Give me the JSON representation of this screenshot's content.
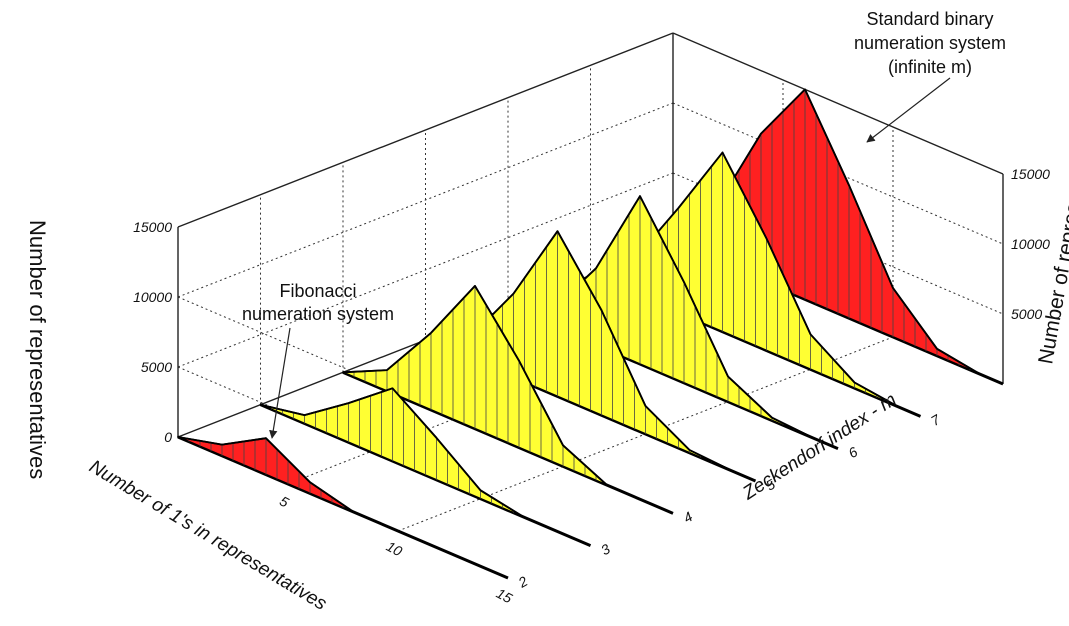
{
  "chart_data": {
    "type": "area",
    "title": "",
    "x_axis": {
      "label": "Number of 1's in representatives",
      "ticks": [
        "0",
        "5",
        "10",
        "15"
      ],
      "range": [
        0,
        15
      ]
    },
    "depth_axis": {
      "label": "Zeckendorf index - m",
      "ticks": [
        "2",
        "3",
        "4",
        "5",
        "6",
        "7"
      ]
    },
    "z_axis_left": {
      "label": "Number of representatives",
      "ticks": [
        "0",
        "5000",
        "10000",
        "15000"
      ],
      "range": [
        0,
        15000
      ]
    },
    "z_axis_right": {
      "label": "Number of representatives",
      "ticks": [
        "5000",
        "10000",
        "15000"
      ]
    },
    "grid": true,
    "series": [
      {
        "name": "",
        "m": "2",
        "color": "#ff2020",
        "x": [
          0,
          2,
          4,
          6,
          8
        ],
        "values": [
          0,
          800,
          2600,
          800,
          0
        ]
      },
      {
        "name": "",
        "m": "3",
        "color": "#ffff33",
        "x": [
          0,
          2,
          4,
          6,
          8,
          10,
          12
        ],
        "values": [
          0,
          600,
          2800,
          5200,
          3000,
          600,
          0
        ]
      },
      {
        "name": "",
        "m": "4",
        "color": "#ffff33",
        "x": [
          0,
          2,
          4,
          6,
          8,
          10,
          12,
          14
        ],
        "values": [
          0,
          1500,
          5500,
          10200,
          6200,
          1500,
          0,
          0
        ]
      },
      {
        "name": "",
        "m": "5",
        "color": "#ffff33",
        "x": [
          0,
          2,
          4,
          6,
          8,
          10,
          12,
          14
        ],
        "values": [
          0,
          1500,
          6000,
          11800,
          7500,
          2000,
          200,
          0
        ]
      },
      {
        "name": "",
        "m": "6",
        "color": "#ffff33",
        "x": [
          0,
          2,
          4,
          6,
          8,
          10,
          12,
          14
        ],
        "values": [
          0,
          1200,
          5500,
          12000,
          7200,
          1800,
          200,
          0
        ]
      },
      {
        "name": "",
        "m": "7",
        "color": "#ffff33",
        "x": [
          0,
          2,
          4,
          6,
          8,
          10,
          12,
          14
        ],
        "values": [
          0,
          2500,
          7500,
          12800,
          8000,
          2500,
          400,
          0
        ]
      },
      {
        "name": "",
        "m": "infinite",
        "color": "#ff2020",
        "x": [
          0,
          2,
          4,
          6,
          8,
          10,
          12,
          14
        ],
        "values": [
          0,
          4000,
          10500,
          15000,
          9500,
          3500,
          500,
          0
        ]
      }
    ],
    "annotations": [
      {
        "lines": [
          "Fibonacci",
          "numeration system"
        ],
        "points_to": "m = 2"
      },
      {
        "lines": [
          "Standard binary",
          "numeration system",
          "(infinite m)"
        ],
        "points_to": "infinite m"
      }
    ]
  }
}
